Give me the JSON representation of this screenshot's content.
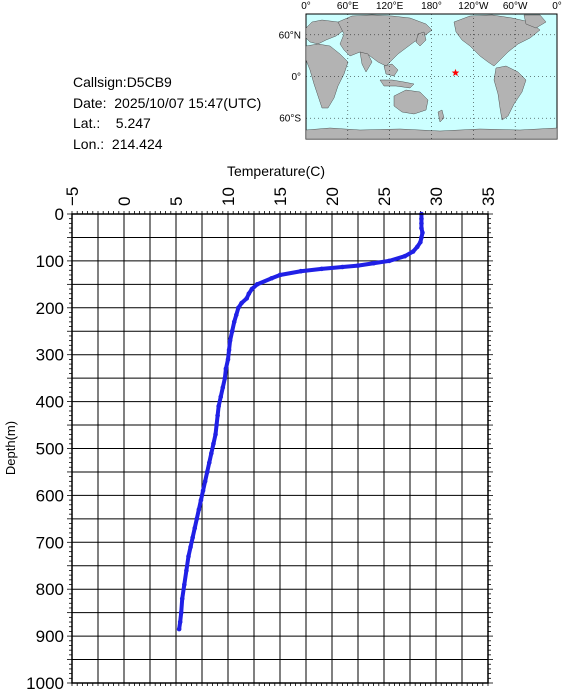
{
  "info": {
    "callsign": "Callsign:D5CB9",
    "date": "Date:  2025/10/07 15:47(UTC)",
    "lat": "Lat.:    5.247",
    "lon": "Lon.:  214.424"
  },
  "map": {
    "top_labels": [
      "0°",
      "60°E",
      "120°E",
      "180°",
      "120°W",
      "60°W",
      "0°"
    ],
    "left_labels": [
      "60°N",
      "0°",
      "60°S"
    ],
    "ocean_color": "#ccffff",
    "land_color": "#b3b3b3",
    "marker": {
      "lat": 5.247,
      "lon": 214.424,
      "color": "#ff0000",
      "icon": "star-icon"
    }
  },
  "chart_data": {
    "type": "line",
    "xlabel": "Temperature(C)",
    "ylabel": "Depth(m)",
    "xlim": [
      -5,
      35
    ],
    "ylim": [
      0,
      1000
    ],
    "y_inverted": true,
    "x_ticks": [
      -5,
      0,
      5,
      10,
      15,
      20,
      25,
      30,
      35
    ],
    "y_ticks": [
      0,
      100,
      200,
      300,
      400,
      500,
      600,
      700,
      800,
      900,
      1000
    ],
    "grid": true,
    "series_color": "#2020e6",
    "series": [
      {
        "x": [
          28.6,
          28.6,
          28.6,
          28.6,
          28.7,
          28.6,
          28.5,
          28.2,
          27.8,
          27.0,
          25.5,
          24.0,
          22.5,
          21.0,
          19.0,
          17.0,
          15.0,
          14.2,
          12.8,
          12.3,
          12.0,
          11.8,
          11.3,
          11.0,
          10.8,
          10.6,
          10.4,
          10.2,
          10.1,
          10.0,
          9.8,
          9.7,
          9.5,
          9.3,
          9.1,
          9.0,
          8.9,
          8.8,
          8.6,
          8.4,
          8.2,
          8.0,
          7.8,
          7.6,
          7.4,
          7.2,
          7.0,
          6.8,
          6.6,
          6.4,
          6.2,
          6.0,
          5.8,
          5.6,
          5.5,
          5.4,
          5.3
        ],
        "y": [
          0,
          10,
          20,
          30,
          40,
          50,
          60,
          70,
          80,
          90,
          100,
          105,
          110,
          113,
          117,
          122,
          130,
          137,
          150,
          160,
          170,
          180,
          190,
          200,
          215,
          230,
          250,
          270,
          290,
          310,
          330,
          350,
          370,
          390,
          410,
          430,
          450,
          470,
          490,
          510,
          530,
          550,
          570,
          590,
          610,
          630,
          650,
          670,
          690,
          710,
          730,
          760,
          790,
          820,
          850,
          870,
          885
        ]
      }
    ]
  }
}
